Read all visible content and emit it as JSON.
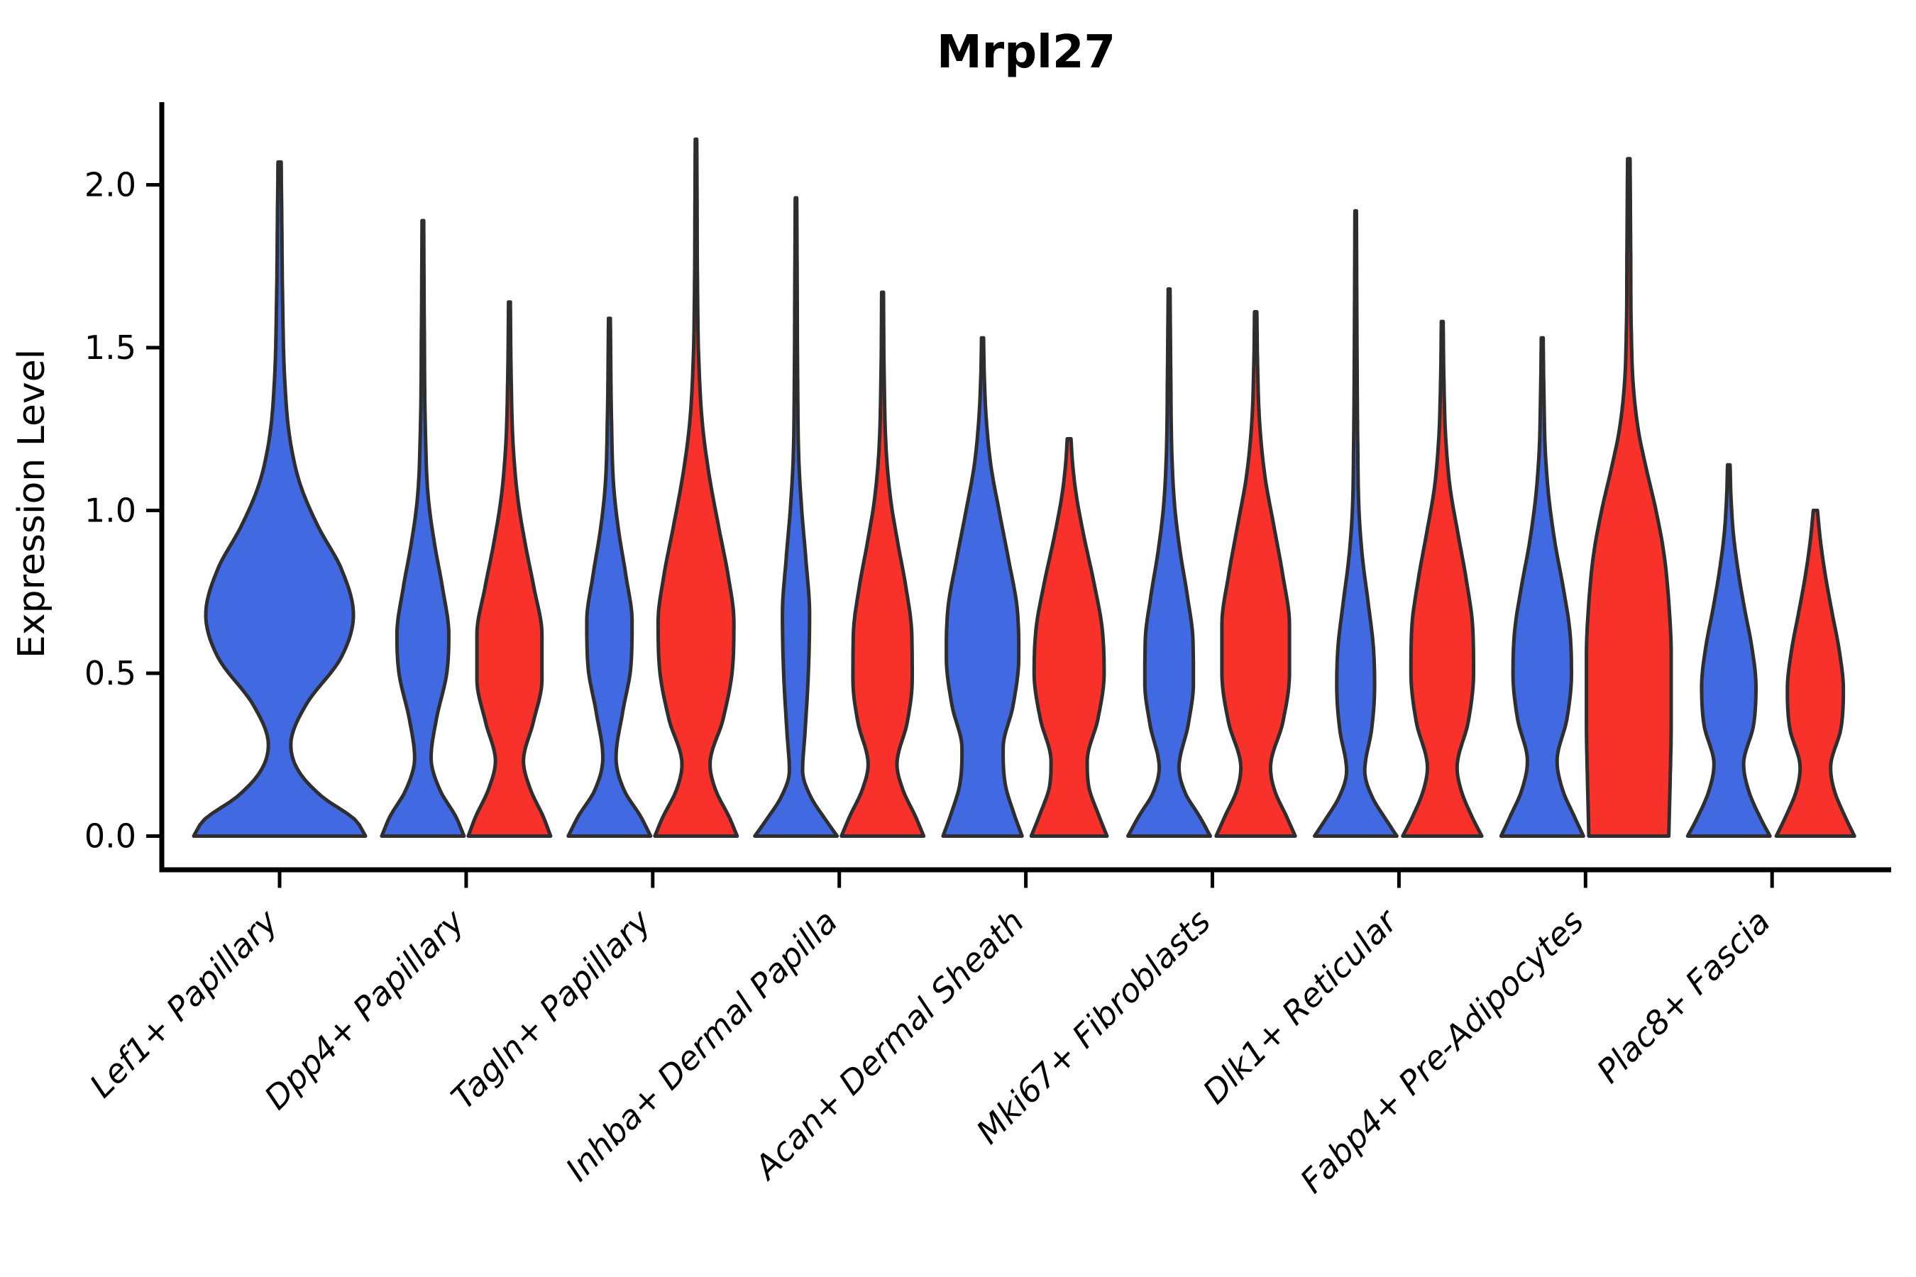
{
  "chart_data": {
    "type": "violin",
    "title": "Mrpl27",
    "ylabel": "Expression Level",
    "xlabel": "",
    "grid": false,
    "legend": "none",
    "ylim": [
      0,
      2.25
    ],
    "yticks": [
      0.0,
      0.5,
      1.0,
      1.5,
      2.0
    ],
    "categories": [
      "Lef1+ Papillary",
      "Dpp4+ Papillary",
      "Tagln+ Papillary",
      "Inhba+ Dermal Papilla",
      "Acan+ Dermal Sheath",
      "Mki67+ Fibroblasts",
      "Dlk1+ Reticular",
      "Fabp4+ Pre-Adipocytes",
      "Plac8+ Fascia"
    ],
    "colors": {
      "blue": "#4169e1",
      "red": "#f8312a",
      "edge": "#2e2e2e",
      "axis": "#000000"
    },
    "violins": [
      {
        "category": "Lef1+ Papillary",
        "color_key": "blue",
        "layout": "full",
        "max_value": 2.07,
        "profile": [
          [
            0,
            1
          ],
          [
            0.05,
            0.88
          ],
          [
            0.12,
            0.5
          ],
          [
            0.2,
            0.22
          ],
          [
            0.28,
            0.13
          ],
          [
            0.4,
            0.3
          ],
          [
            0.55,
            0.72
          ],
          [
            0.68,
            0.86
          ],
          [
            0.82,
            0.72
          ],
          [
            0.95,
            0.45
          ],
          [
            1.08,
            0.24
          ],
          [
            1.22,
            0.12
          ],
          [
            1.4,
            0.06
          ],
          [
            1.65,
            0.035
          ],
          [
            1.9,
            0.025
          ],
          [
            2.07,
            0.018
          ]
        ]
      },
      {
        "category": "Dpp4+ Papillary",
        "color_key": "blue",
        "layout": "left",
        "max_value": 1.89,
        "profile": [
          [
            0,
            1
          ],
          [
            0.06,
            0.8
          ],
          [
            0.14,
            0.42
          ],
          [
            0.24,
            0.2
          ],
          [
            0.36,
            0.33
          ],
          [
            0.5,
            0.58
          ],
          [
            0.62,
            0.63
          ],
          [
            0.76,
            0.48
          ],
          [
            0.9,
            0.28
          ],
          [
            1.04,
            0.13
          ],
          [
            1.25,
            0.06
          ],
          [
            1.55,
            0.035
          ],
          [
            1.89,
            0.02
          ]
        ]
      },
      {
        "category": "Dpp4+ Papillary",
        "color_key": "red",
        "layout": "right",
        "max_value": 1.64,
        "profile": [
          [
            0,
            1
          ],
          [
            0.06,
            0.82
          ],
          [
            0.14,
            0.52
          ],
          [
            0.23,
            0.34
          ],
          [
            0.35,
            0.58
          ],
          [
            0.48,
            0.79
          ],
          [
            0.62,
            0.79
          ],
          [
            0.76,
            0.6
          ],
          [
            0.9,
            0.38
          ],
          [
            1.04,
            0.2
          ],
          [
            1.2,
            0.09
          ],
          [
            1.42,
            0.04
          ],
          [
            1.64,
            0.022
          ]
        ]
      },
      {
        "category": "Tagln+ Papillary",
        "color_key": "blue",
        "layout": "left",
        "max_value": 1.59,
        "profile": [
          [
            0,
            1
          ],
          [
            0.06,
            0.76
          ],
          [
            0.14,
            0.36
          ],
          [
            0.24,
            0.16
          ],
          [
            0.38,
            0.32
          ],
          [
            0.52,
            0.52
          ],
          [
            0.66,
            0.55
          ],
          [
            0.8,
            0.4
          ],
          [
            0.94,
            0.22
          ],
          [
            1.08,
            0.1
          ],
          [
            1.28,
            0.05
          ],
          [
            1.59,
            0.022
          ]
        ]
      },
      {
        "category": "Tagln+ Papillary",
        "color_key": "red",
        "layout": "right",
        "max_value": 2.14,
        "profile": [
          [
            0,
            1
          ],
          [
            0.06,
            0.8
          ],
          [
            0.14,
            0.48
          ],
          [
            0.22,
            0.34
          ],
          [
            0.36,
            0.66
          ],
          [
            0.52,
            0.89
          ],
          [
            0.66,
            0.92
          ],
          [
            0.8,
            0.78
          ],
          [
            0.95,
            0.55
          ],
          [
            1.1,
            0.33
          ],
          [
            1.26,
            0.16
          ],
          [
            1.45,
            0.07
          ],
          [
            1.7,
            0.035
          ],
          [
            1.95,
            0.025
          ],
          [
            2.14,
            0.018
          ]
        ]
      },
      {
        "category": "Inhba+ Dermal Papilla",
        "color_key": "blue",
        "layout": "left",
        "max_value": 1.96,
        "profile": [
          [
            0,
            1
          ],
          [
            0.05,
            0.72
          ],
          [
            0.12,
            0.36
          ],
          [
            0.2,
            0.16
          ],
          [
            0.32,
            0.22
          ],
          [
            0.5,
            0.3
          ],
          [
            0.68,
            0.33
          ],
          [
            0.85,
            0.24
          ],
          [
            1.0,
            0.14
          ],
          [
            1.15,
            0.07
          ],
          [
            1.4,
            0.04
          ],
          [
            1.7,
            0.028
          ],
          [
            1.96,
            0.018
          ]
        ]
      },
      {
        "category": "Inhba+ Dermal Papilla",
        "color_key": "red",
        "layout": "right",
        "max_value": 1.67,
        "profile": [
          [
            0,
            1
          ],
          [
            0.06,
            0.8
          ],
          [
            0.14,
            0.5
          ],
          [
            0.22,
            0.35
          ],
          [
            0.35,
            0.6
          ],
          [
            0.48,
            0.72
          ],
          [
            0.62,
            0.71
          ],
          [
            0.77,
            0.56
          ],
          [
            0.9,
            0.37
          ],
          [
            1.03,
            0.2
          ],
          [
            1.18,
            0.09
          ],
          [
            1.4,
            0.04
          ],
          [
            1.67,
            0.022
          ]
        ]
      },
      {
        "category": "Acan+ Dermal Sheath",
        "color_key": "blue",
        "layout": "left",
        "max_value": 1.53,
        "profile": [
          [
            0,
            0.96
          ],
          [
            0.07,
            0.76
          ],
          [
            0.16,
            0.55
          ],
          [
            0.27,
            0.5
          ],
          [
            0.4,
            0.74
          ],
          [
            0.55,
            0.88
          ],
          [
            0.7,
            0.84
          ],
          [
            0.85,
            0.63
          ],
          [
            1.0,
            0.4
          ],
          [
            1.14,
            0.2
          ],
          [
            1.28,
            0.09
          ],
          [
            1.42,
            0.04
          ],
          [
            1.53,
            0.025
          ]
        ]
      },
      {
        "category": "Acan+ Dermal Sheath",
        "color_key": "red",
        "layout": "right",
        "max_value": 1.22,
        "profile": [
          [
            0,
            0.92
          ],
          [
            0.07,
            0.7
          ],
          [
            0.15,
            0.48
          ],
          [
            0.23,
            0.44
          ],
          [
            0.36,
            0.7
          ],
          [
            0.5,
            0.85
          ],
          [
            0.64,
            0.8
          ],
          [
            0.78,
            0.6
          ],
          [
            0.92,
            0.36
          ],
          [
            1.05,
            0.17
          ],
          [
            1.15,
            0.08
          ],
          [
            1.22,
            0.045
          ]
        ]
      },
      {
        "category": "Mki67+ Fibroblasts",
        "color_key": "blue",
        "layout": "left",
        "max_value": 1.68,
        "profile": [
          [
            0,
            1
          ],
          [
            0.06,
            0.74
          ],
          [
            0.13,
            0.4
          ],
          [
            0.21,
            0.24
          ],
          [
            0.34,
            0.46
          ],
          [
            0.47,
            0.59
          ],
          [
            0.6,
            0.58
          ],
          [
            0.74,
            0.44
          ],
          [
            0.88,
            0.26
          ],
          [
            1.02,
            0.13
          ],
          [
            1.18,
            0.065
          ],
          [
            1.42,
            0.04
          ],
          [
            1.68,
            0.022
          ]
        ]
      },
      {
        "category": "Mki67+ Fibroblasts",
        "color_key": "red",
        "layout": "right",
        "max_value": 1.61,
        "profile": [
          [
            0,
            0.96
          ],
          [
            0.06,
            0.75
          ],
          [
            0.14,
            0.46
          ],
          [
            0.21,
            0.36
          ],
          [
            0.35,
            0.66
          ],
          [
            0.5,
            0.82
          ],
          [
            0.65,
            0.82
          ],
          [
            0.8,
            0.66
          ],
          [
            0.96,
            0.43
          ],
          [
            1.1,
            0.23
          ],
          [
            1.26,
            0.1
          ],
          [
            1.45,
            0.045
          ],
          [
            1.61,
            0.028
          ]
        ]
      },
      {
        "category": "Dlk1+ Reticular",
        "color_key": "blue",
        "layout": "left",
        "max_value": 1.92,
        "profile": [
          [
            0,
            1
          ],
          [
            0.05,
            0.74
          ],
          [
            0.12,
            0.4
          ],
          [
            0.2,
            0.22
          ],
          [
            0.33,
            0.39
          ],
          [
            0.46,
            0.46
          ],
          [
            0.58,
            0.43
          ],
          [
            0.72,
            0.3
          ],
          [
            0.86,
            0.16
          ],
          [
            1.0,
            0.08
          ],
          [
            1.2,
            0.05
          ],
          [
            1.5,
            0.032
          ],
          [
            1.92,
            0.018
          ]
        ]
      },
      {
        "category": "Dlk1+ Reticular",
        "color_key": "red",
        "layout": "right",
        "max_value": 1.58,
        "profile": [
          [
            0,
            0.96
          ],
          [
            0.06,
            0.72
          ],
          [
            0.14,
            0.46
          ],
          [
            0.21,
            0.36
          ],
          [
            0.35,
            0.63
          ],
          [
            0.5,
            0.76
          ],
          [
            0.64,
            0.74
          ],
          [
            0.79,
            0.58
          ],
          [
            0.93,
            0.38
          ],
          [
            1.07,
            0.19
          ],
          [
            1.22,
            0.085
          ],
          [
            1.4,
            0.04
          ],
          [
            1.58,
            0.022
          ]
        ]
      },
      {
        "category": "Fabp4+ Pre-Adipocytes",
        "color_key": "blue",
        "layout": "left",
        "max_value": 1.53,
        "profile": [
          [
            0,
            1
          ],
          [
            0.06,
            0.78
          ],
          [
            0.14,
            0.5
          ],
          [
            0.23,
            0.36
          ],
          [
            0.36,
            0.6
          ],
          [
            0.5,
            0.71
          ],
          [
            0.63,
            0.67
          ],
          [
            0.77,
            0.5
          ],
          [
            0.9,
            0.31
          ],
          [
            1.04,
            0.16
          ],
          [
            1.18,
            0.075
          ],
          [
            1.36,
            0.04
          ],
          [
            1.53,
            0.022
          ]
        ]
      },
      {
        "category": "Fabp4+ Pre-Adipocytes",
        "color_key": "red",
        "layout": "right",
        "max_value": 2.08,
        "profile": [
          [
            0,
            0.97
          ],
          [
            0.15,
            1.0
          ],
          [
            0.35,
            1.03
          ],
          [
            0.55,
            1.03
          ],
          [
            0.72,
            0.97
          ],
          [
            0.87,
            0.85
          ],
          [
            1.0,
            0.66
          ],
          [
            1.12,
            0.44
          ],
          [
            1.24,
            0.24
          ],
          [
            1.38,
            0.11
          ],
          [
            1.55,
            0.06
          ],
          [
            1.8,
            0.045
          ],
          [
            2.08,
            0.03
          ]
        ]
      },
      {
        "category": "Plac8+ Fascia",
        "color_key": "blue",
        "layout": "left",
        "max_value": 1.14,
        "profile": [
          [
            0,
            1
          ],
          [
            0.06,
            0.75
          ],
          [
            0.14,
            0.48
          ],
          [
            0.22,
            0.36
          ],
          [
            0.34,
            0.6
          ],
          [
            0.46,
            0.66
          ],
          [
            0.58,
            0.56
          ],
          [
            0.7,
            0.38
          ],
          [
            0.82,
            0.22
          ],
          [
            0.93,
            0.11
          ],
          [
            1.05,
            0.05
          ],
          [
            1.14,
            0.03
          ]
        ]
      },
      {
        "category": "Plac8+ Fascia",
        "color_key": "red",
        "layout": "right",
        "max_value": 1.0,
        "profile": [
          [
            0,
            0.95
          ],
          [
            0.06,
            0.72
          ],
          [
            0.14,
            0.46
          ],
          [
            0.21,
            0.37
          ],
          [
            0.33,
            0.62
          ],
          [
            0.45,
            0.68
          ],
          [
            0.57,
            0.58
          ],
          [
            0.69,
            0.4
          ],
          [
            0.81,
            0.23
          ],
          [
            0.91,
            0.12
          ],
          [
            1.0,
            0.05
          ]
        ]
      }
    ]
  }
}
